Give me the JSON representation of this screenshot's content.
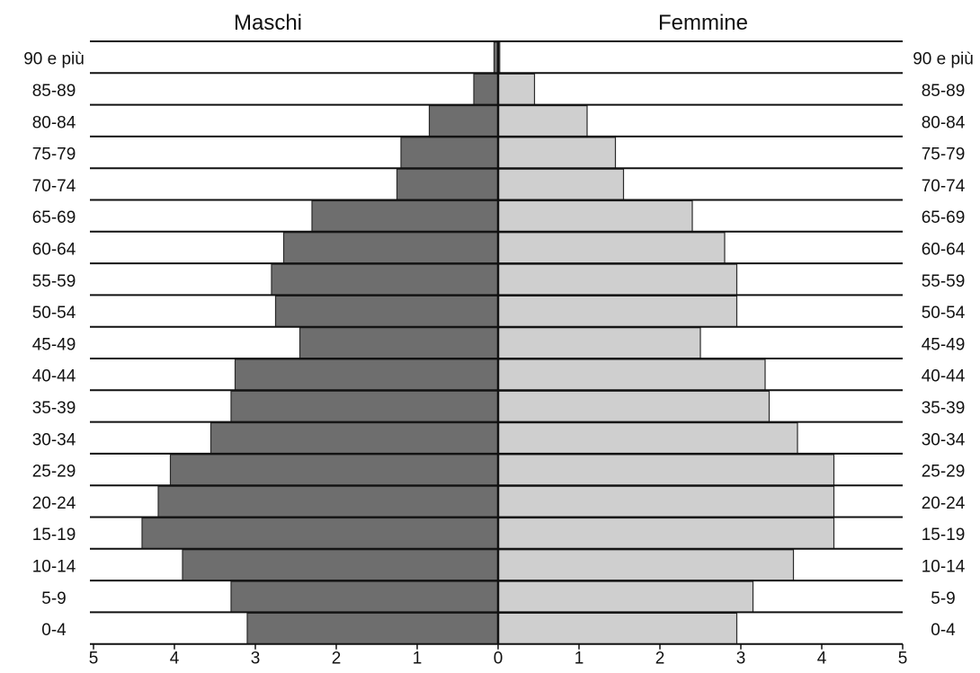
{
  "chart_data": {
    "type": "bar",
    "orientation": "horizontal",
    "layout": "population-pyramid",
    "left_title": "Maschi",
    "right_title": "Femmine",
    "categories": [
      "90 e più",
      "85-89",
      "80-84",
      "75-79",
      "70-74",
      "65-69",
      "60-64",
      "55-59",
      "50-54",
      "45-49",
      "40-44",
      "35-39",
      "30-34",
      "25-29",
      "20-24",
      "15-19",
      "10-14",
      "5-9",
      "0-4"
    ],
    "series": [
      {
        "name": "Maschi",
        "side": "left",
        "color": "#6e6e6e",
        "values": [
          0.05,
          0.3,
          0.85,
          1.2,
          1.25,
          2.3,
          2.65,
          2.8,
          2.75,
          2.45,
          3.25,
          3.3,
          3.55,
          4.05,
          4.2,
          4.4,
          3.9,
          3.3,
          3.1
        ]
      },
      {
        "name": "Femmine",
        "side": "right",
        "color": "#cfcfcf",
        "values": [
          0.02,
          0.45,
          1.1,
          1.45,
          1.55,
          2.4,
          2.8,
          2.95,
          2.95,
          2.5,
          3.3,
          3.35,
          3.7,
          4.15,
          4.15,
          4.15,
          3.65,
          3.15,
          2.95
        ]
      }
    ],
    "xticks_left": [
      "5",
      "4",
      "3",
      "2",
      "1"
    ],
    "xticks_right": [
      "0",
      "1",
      "2",
      "3",
      "4",
      "5"
    ],
    "xlim": [
      -5,
      5
    ],
    "grid": false,
    "legend": "none"
  }
}
